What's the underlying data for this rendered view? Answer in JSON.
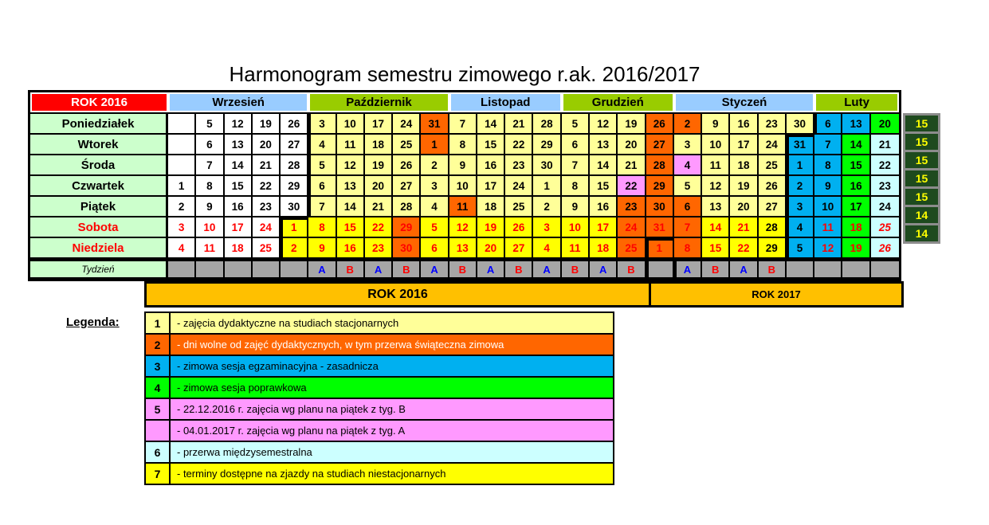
{
  "page": {
    "title": "Harmonogram semestru zimowego r.ak. 2016/2017"
  },
  "colors": {
    "cell": {
      "w": "#FFFFFF",
      "y": "#FFFF99",
      "Y": "#FFFF00",
      "o": "#FF6600",
      "b": "#00B0F0",
      "g": "#00FF00",
      "c": "#CCFFFF",
      "p": "#FF99FF"
    },
    "month_blue": "#99CCFF",
    "month_green": "#99CC00",
    "year_header_bg": "#FF0000",
    "year_header_text": "#FFFFFF",
    "day_label_bg": "#CCFFCC",
    "weekend_text": "#FF0000",
    "week_row_bg": "#A6A6A6",
    "letter_A": "#0000FF",
    "letter_B": "#FF0000",
    "year_bar_bg": "#FFC000",
    "summary_bg": "#1E4A1E",
    "summary_text": "#FFFF00"
  },
  "calendar": {
    "year_header": {
      "label": "ROK 2016"
    },
    "months": [
      {
        "label": "Wrzesień",
        "span": 5,
        "bg": "#99CCFF"
      },
      {
        "label": "Październik",
        "span": 5,
        "bg": "#99CC00"
      },
      {
        "label": "Listopad",
        "span": 4,
        "bg": "#99CCFF"
      },
      {
        "label": "Grudzień",
        "span": 4,
        "bg": "#99CC00"
      },
      {
        "label": "Styczeń",
        "span": 5,
        "bg": "#99CCFF"
      },
      {
        "label": "Luty",
        "span": 3,
        "bg": "#99CC00"
      }
    ],
    "days": [
      {
        "label": "Poniedziałek",
        "weekend": false,
        "weeks": "15",
        "cells": [
          [
            "",
            "w"
          ],
          [
            "5",
            "w"
          ],
          [
            "12",
            "w"
          ],
          [
            "19",
            "w"
          ],
          [
            "26",
            "w"
          ],
          [
            "3",
            "y",
            "L"
          ],
          [
            "10",
            "y"
          ],
          [
            "17",
            "y"
          ],
          [
            "24",
            "y"
          ],
          [
            "31",
            "o"
          ],
          [
            "7",
            "y"
          ],
          [
            "14",
            "y"
          ],
          [
            "21",
            "y"
          ],
          [
            "28",
            "y"
          ],
          [
            "5",
            "y"
          ],
          [
            "12",
            "y"
          ],
          [
            "19",
            "y"
          ],
          [
            "26",
            "o"
          ],
          [
            "2",
            "o"
          ],
          [
            "9",
            "y"
          ],
          [
            "16",
            "y"
          ],
          [
            "23",
            "y"
          ],
          [
            "30",
            "y"
          ],
          [
            "6",
            "b",
            "L"
          ],
          [
            "13",
            "b"
          ],
          [
            "20",
            "g"
          ]
        ]
      },
      {
        "label": "Wtorek",
        "weekend": false,
        "weeks": "15",
        "cells": [
          [
            "",
            "w"
          ],
          [
            "6",
            "w"
          ],
          [
            "13",
            "w"
          ],
          [
            "20",
            "w"
          ],
          [
            "27",
            "w"
          ],
          [
            "4",
            "y",
            "L"
          ],
          [
            "11",
            "y"
          ],
          [
            "18",
            "y"
          ],
          [
            "25",
            "y"
          ],
          [
            "1",
            "o"
          ],
          [
            "8",
            "y"
          ],
          [
            "15",
            "y"
          ],
          [
            "22",
            "y"
          ],
          [
            "29",
            "y"
          ],
          [
            "6",
            "y"
          ],
          [
            "13",
            "y"
          ],
          [
            "20",
            "y"
          ],
          [
            "27",
            "o"
          ],
          [
            "3",
            "y"
          ],
          [
            "10",
            "y"
          ],
          [
            "17",
            "y"
          ],
          [
            "24",
            "y"
          ],
          [
            "31",
            "b",
            "LT"
          ],
          [
            "7",
            "b"
          ],
          [
            "14",
            "g"
          ],
          [
            "21",
            "c"
          ]
        ]
      },
      {
        "label": "Środa",
        "weekend": false,
        "weeks": "15",
        "cells": [
          [
            "",
            "w"
          ],
          [
            "7",
            "w"
          ],
          [
            "14",
            "w"
          ],
          [
            "21",
            "w"
          ],
          [
            "28",
            "w"
          ],
          [
            "5",
            "y",
            "L"
          ],
          [
            "12",
            "y"
          ],
          [
            "19",
            "y"
          ],
          [
            "26",
            "y"
          ],
          [
            "2",
            "y"
          ],
          [
            "9",
            "y"
          ],
          [
            "16",
            "y"
          ],
          [
            "23",
            "y"
          ],
          [
            "30",
            "y"
          ],
          [
            "7",
            "y"
          ],
          [
            "14",
            "y"
          ],
          [
            "21",
            "y"
          ],
          [
            "28",
            "o"
          ],
          [
            "4",
            "p"
          ],
          [
            "11",
            "y"
          ],
          [
            "18",
            "y"
          ],
          [
            "25",
            "y"
          ],
          [
            "1",
            "b",
            "L"
          ],
          [
            "8",
            "b"
          ],
          [
            "15",
            "g"
          ],
          [
            "22",
            "c"
          ]
        ]
      },
      {
        "label": "Czwartek",
        "weekend": false,
        "weeks": "15",
        "cells": [
          [
            "1",
            "w"
          ],
          [
            "8",
            "w"
          ],
          [
            "15",
            "w"
          ],
          [
            "22",
            "w"
          ],
          [
            "29",
            "w"
          ],
          [
            "6",
            "y",
            "L"
          ],
          [
            "13",
            "y"
          ],
          [
            "20",
            "y"
          ],
          [
            "27",
            "y"
          ],
          [
            "3",
            "y"
          ],
          [
            "10",
            "y"
          ],
          [
            "17",
            "y"
          ],
          [
            "24",
            "y"
          ],
          [
            "1",
            "y"
          ],
          [
            "8",
            "y"
          ],
          [
            "15",
            "y"
          ],
          [
            "22",
            "p"
          ],
          [
            "29",
            "o"
          ],
          [
            "5",
            "y"
          ],
          [
            "12",
            "y"
          ],
          [
            "19",
            "y"
          ],
          [
            "26",
            "y"
          ],
          [
            "2",
            "b",
            "L"
          ],
          [
            "9",
            "b"
          ],
          [
            "16",
            "g"
          ],
          [
            "23",
            "c"
          ]
        ]
      },
      {
        "label": "Piątek",
        "weekend": false,
        "weeks": "15",
        "cells": [
          [
            "2",
            "w"
          ],
          [
            "9",
            "w"
          ],
          [
            "16",
            "w"
          ],
          [
            "23",
            "w"
          ],
          [
            "30",
            "w"
          ],
          [
            "7",
            "y",
            "L"
          ],
          [
            "14",
            "y"
          ],
          [
            "21",
            "y"
          ],
          [
            "28",
            "y"
          ],
          [
            "4",
            "y"
          ],
          [
            "11",
            "o"
          ],
          [
            "18",
            "y"
          ],
          [
            "25",
            "y"
          ],
          [
            "2",
            "y"
          ],
          [
            "9",
            "y"
          ],
          [
            "16",
            "y"
          ],
          [
            "23",
            "o"
          ],
          [
            "30",
            "o"
          ],
          [
            "6",
            "o"
          ],
          [
            "13",
            "y"
          ],
          [
            "20",
            "y"
          ],
          [
            "27",
            "y"
          ],
          [
            "3",
            "b",
            "L"
          ],
          [
            "10",
            "b"
          ],
          [
            "17",
            "g"
          ],
          [
            "24",
            "c"
          ]
        ]
      },
      {
        "label": "Sobota",
        "weekend": true,
        "weeks": "14",
        "cells": [
          [
            "3",
            "w"
          ],
          [
            "10",
            "w"
          ],
          [
            "17",
            "w"
          ],
          [
            "24",
            "w"
          ],
          [
            "1",
            "Y",
            "LT"
          ],
          [
            "8",
            "Y"
          ],
          [
            "15",
            "Y"
          ],
          [
            "22",
            "Y"
          ],
          [
            "29",
            "o"
          ],
          [
            "5",
            "Y"
          ],
          [
            "12",
            "Y"
          ],
          [
            "19",
            "Y"
          ],
          [
            "26",
            "Y"
          ],
          [
            "3",
            "Y"
          ],
          [
            "10",
            "Y"
          ],
          [
            "17",
            "Y"
          ],
          [
            "24",
            "o"
          ],
          [
            "31",
            "o"
          ],
          [
            "7",
            "o"
          ],
          [
            "14",
            "Y"
          ],
          [
            "21",
            "Y"
          ],
          [
            "28",
            "Y",
            "k"
          ],
          [
            "4",
            "b",
            "kL"
          ],
          [
            "11",
            "b"
          ],
          [
            "18",
            "g"
          ],
          [
            "25",
            "c",
            "i"
          ]
        ]
      },
      {
        "label": "Niedziela",
        "weekend": true,
        "weeks": "14",
        "cells": [
          [
            "4",
            "w"
          ],
          [
            "11",
            "w"
          ],
          [
            "18",
            "w"
          ],
          [
            "25",
            "w"
          ],
          [
            "2",
            "Y",
            "L"
          ],
          [
            "9",
            "Y"
          ],
          [
            "16",
            "Y"
          ],
          [
            "23",
            "Y"
          ],
          [
            "30",
            "o"
          ],
          [
            "6",
            "Y"
          ],
          [
            "13",
            "Y"
          ],
          [
            "20",
            "Y"
          ],
          [
            "27",
            "Y"
          ],
          [
            "4",
            "Y"
          ],
          [
            "11",
            "Y"
          ],
          [
            "18",
            "Y"
          ],
          [
            "25",
            "o"
          ],
          [
            "1",
            "o",
            "LT"
          ],
          [
            "8",
            "o"
          ],
          [
            "15",
            "Y"
          ],
          [
            "22",
            "Y"
          ],
          [
            "29",
            "Y",
            "k"
          ],
          [
            "5",
            "b",
            "kL"
          ],
          [
            "12",
            "b"
          ],
          [
            "19",
            "g"
          ],
          [
            "26",
            "c",
            "i"
          ]
        ]
      }
    ],
    "week_row": {
      "label": "Tydzień",
      "letters": [
        "",
        "",
        "",
        "",
        "",
        "A",
        "B",
        "A",
        "B",
        "A",
        "B",
        "A",
        "B",
        "A",
        "B",
        "A",
        "B",
        "",
        "A",
        "B",
        "A",
        "B",
        "",
        "",
        "",
        ""
      ],
      "thick_left_indices": [
        17,
        18
      ]
    },
    "year_bars": [
      {
        "label": "ROK 2016"
      },
      {
        "label": "ROK 2017"
      }
    ]
  },
  "legend": {
    "label": "Legenda:",
    "items": [
      {
        "num": "1",
        "text": "- zajęcia dydaktyczne na studiach stacjonarnych",
        "bg": "#FFFF99",
        "fg": "#000000"
      },
      {
        "num": "2",
        "text": "- dni wolne od zajęć dydaktycznych, w tym przerwa świąteczna zimowa",
        "bg": "#FF6600",
        "fg": "#FFFFFF"
      },
      {
        "num": "3",
        "text": "- zimowa sesja egzaminacyjna - zasadnicza",
        "bg": "#00B0F0",
        "fg": "#000000"
      },
      {
        "num": "4",
        "text": "- zimowa sesja poprawkowa",
        "bg": "#00FF00",
        "fg": "#000000"
      },
      {
        "num": "5",
        "text": "- 22.12.2016 r. zajęcia wg planu na piątek z tyg. B",
        "bg": "#FF99FF",
        "fg": "#000000"
      },
      {
        "num": "",
        "text": "- 04.01.2017 r. zajęcia wg planu na piątek z tyg. A",
        "bg": "#FF99FF",
        "fg": "#000000"
      },
      {
        "num": "6",
        "text": "- przerwa międzysemestralna",
        "bg": "#CCFFFF",
        "fg": "#000000"
      },
      {
        "num": "7",
        "text": "- terminy dostępne na zjazdy na studiach niestacjonarnych",
        "bg": "#FFFF00",
        "fg": "#000000"
      }
    ]
  }
}
